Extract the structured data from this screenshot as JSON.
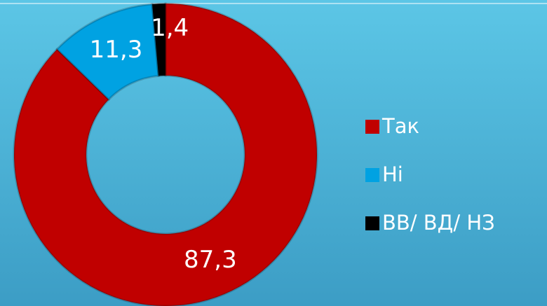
{
  "chart_data": {
    "type": "pie",
    "categories": [
      "Так",
      "Ні",
      "ВВ/ ВД/ НЗ"
    ],
    "values": [
      87.3,
      11.3,
      1.4
    ],
    "value_labels": [
      "87,3",
      "11,3",
      "1,4"
    ],
    "colors": [
      "#c00000",
      "#00a2e2",
      "#000000"
    ],
    "donut": true,
    "legend": "right"
  }
}
